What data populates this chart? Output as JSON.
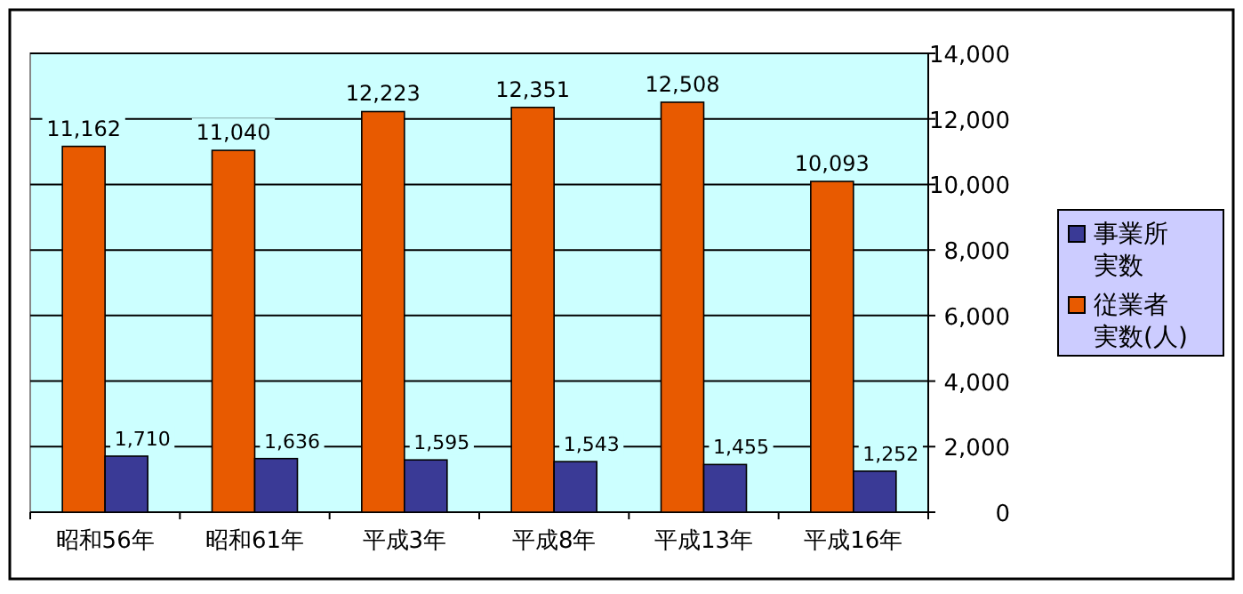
{
  "chart_data": {
    "type": "bar",
    "categories": [
      "昭和56年",
      "昭和61年",
      "平成3年",
      "平成8年",
      "平成13年",
      "平成16年"
    ],
    "series": [
      {
        "name": "従業者実数(人)",
        "color": "#e85a00",
        "values": [
          11162,
          11040,
          12223,
          12351,
          12508,
          10093
        ],
        "value_labels": [
          "11,162",
          "11,040",
          "12,223",
          "12,351",
          "12,508",
          "10,093"
        ]
      },
      {
        "name": "事業所実数",
        "color": "#3a3a96",
        "values": [
          1710,
          1636,
          1595,
          1543,
          1455,
          1252
        ],
        "value_labels": [
          "1,710",
          "1,636",
          "1,595",
          "1,543",
          "1,455",
          "1,252"
        ]
      }
    ],
    "ylim": [
      0,
      14000
    ],
    "yticks": [
      {
        "value": 0,
        "label": "0"
      },
      {
        "value": 2000,
        "label": "2,000"
      },
      {
        "value": 4000,
        "label": "4,000"
      },
      {
        "value": 6000,
        "label": "6,000"
      },
      {
        "value": 8000,
        "label": "8,000"
      },
      {
        "value": 10000,
        "label": "10,000"
      },
      {
        "value": 12000,
        "label": "12,000"
      },
      {
        "value": 14000,
        "label": "14,000"
      }
    ],
    "grid": "y",
    "legend": "right"
  }
}
